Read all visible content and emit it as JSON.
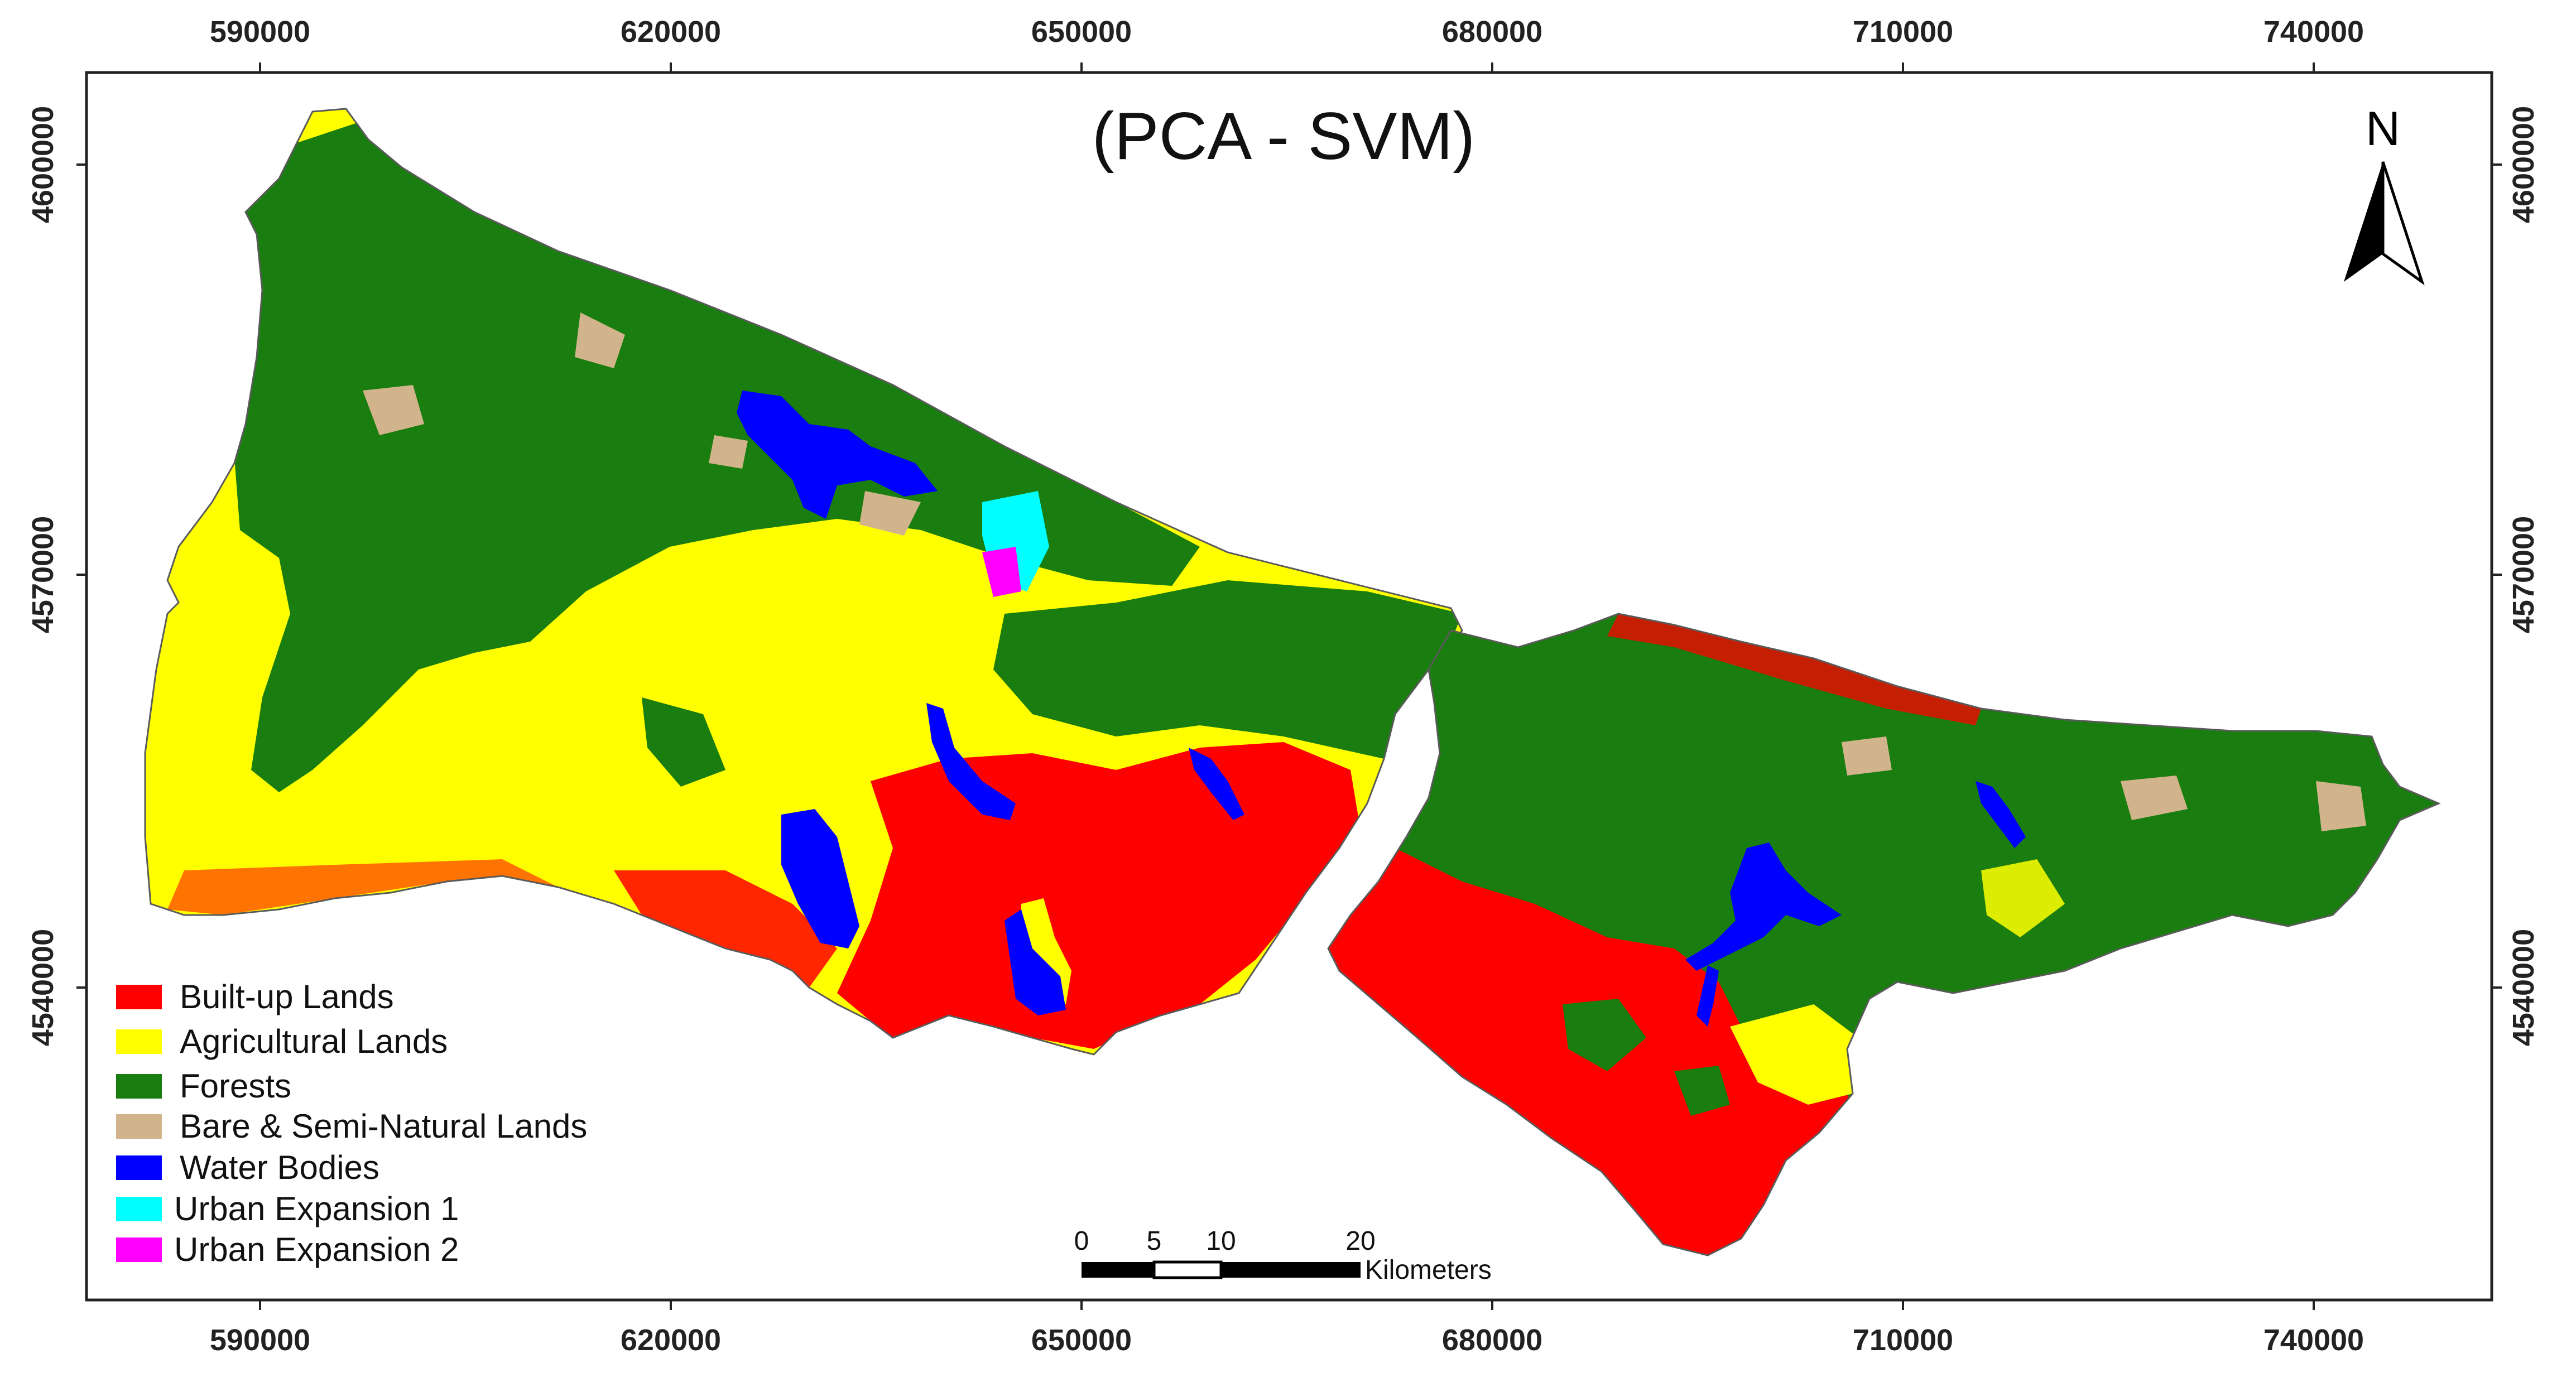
{
  "map": {
    "title": "(PCA - SVM)",
    "north_label": "N",
    "axes": {
      "top_ticks": [
        "590000",
        "620000",
        "650000",
        "680000",
        "710000",
        "740000"
      ],
      "bottom_ticks": [
        "590000",
        "620000",
        "650000",
        "680000",
        "710000",
        "740000"
      ],
      "left_ticks": [
        "4600000",
        "4570000",
        "4540000"
      ],
      "right_ticks": [
        "4600000",
        "4570000",
        "4540000"
      ]
    },
    "legend": [
      {
        "label": "Built-up Lands",
        "color": "#ff0000"
      },
      {
        "label": "Agricultural Lands",
        "color": "#ffff00"
      },
      {
        "label": "Forests",
        "color": "#1a7d0f"
      },
      {
        "label": "Bare & Semi-Natural Lands",
        "color": "#d2b48c"
      },
      {
        "label": "Water Bodies",
        "color": "#0000ff"
      },
      {
        "label": "Urban Expansion 1",
        "color": "#00ffff"
      },
      {
        "label": "Urban Expansion 2",
        "color": "#ff00ff"
      }
    ],
    "scale_bar": {
      "ticks": [
        "0",
        "5",
        "10",
        "20"
      ],
      "unit": "Kilometers"
    }
  }
}
